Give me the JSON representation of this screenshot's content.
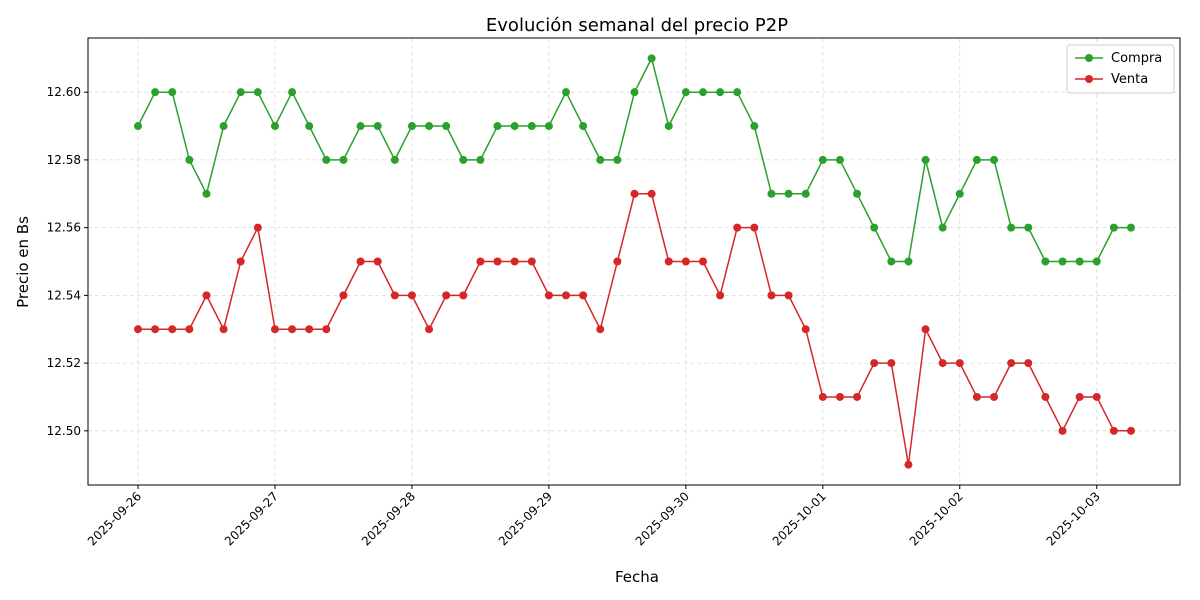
{
  "chart_data": {
    "type": "line",
    "title": "Evolución semanal del precio P2P",
    "x_label": "Fecha",
    "y_label": "Precio en Bs",
    "categories": [
      "2025-09-26",
      null,
      null,
      null,
      null,
      null,
      null,
      null,
      "2025-09-27",
      null,
      null,
      null,
      null,
      null,
      null,
      null,
      "2025-09-28",
      null,
      null,
      null,
      null,
      null,
      null,
      null,
      "2025-09-29",
      null,
      null,
      null,
      null,
      null,
      null,
      null,
      "2025-09-30",
      null,
      null,
      null,
      null,
      null,
      null,
      null,
      "2025-10-01",
      null,
      null,
      null,
      null,
      null,
      null,
      null,
      "2025-10-02",
      null,
      null,
      null,
      null,
      null,
      null,
      null,
      "2025-10-03",
      null,
      null
    ],
    "series": [
      {
        "name": "Compra",
        "color": "#2ca02c",
        "values": [
          12.59,
          12.6,
          12.6,
          12.58,
          12.57,
          12.59,
          12.6,
          12.6,
          12.59,
          12.6,
          12.59,
          12.58,
          12.58,
          12.59,
          12.59,
          12.58,
          12.59,
          12.59,
          12.59,
          12.58,
          12.58,
          12.59,
          12.59,
          12.59,
          12.59,
          12.6,
          12.59,
          12.58,
          12.58,
          12.6,
          12.61,
          12.59,
          12.6,
          12.6,
          12.6,
          12.6,
          12.59,
          12.57,
          12.57,
          12.57,
          12.58,
          12.58,
          12.57,
          12.56,
          12.55,
          12.55,
          12.58,
          12.56,
          12.57,
          12.58,
          12.58,
          12.56,
          12.56,
          12.55,
          12.55,
          12.55,
          12.55,
          12.56,
          12.56
        ]
      },
      {
        "name": "Venta",
        "color": "#d62728",
        "values": [
          12.53,
          12.53,
          12.53,
          12.53,
          12.54,
          12.53,
          12.55,
          12.56,
          12.53,
          12.53,
          12.53,
          12.53,
          12.54,
          12.55,
          12.55,
          12.54,
          12.54,
          12.53,
          12.54,
          12.54,
          12.55,
          12.55,
          12.55,
          12.55,
          12.54,
          12.54,
          12.54,
          12.53,
          12.55,
          12.57,
          12.57,
          12.55,
          12.55,
          12.55,
          12.54,
          12.56,
          12.56,
          12.54,
          12.54,
          12.53,
          12.51,
          12.51,
          12.51,
          12.52,
          12.52,
          12.49,
          12.53,
          12.52,
          12.52,
          12.51,
          12.51,
          12.52,
          12.52,
          12.51,
          12.5,
          12.51,
          12.51,
          12.5,
          12.5
        ]
      }
    ],
    "ylim": [
      12.484,
      12.616
    ],
    "yticks": [
      {
        "value": 12.5,
        "label": "12.50"
      },
      {
        "value": 12.52,
        "label": "12.52"
      },
      {
        "value": 12.54,
        "label": "12.54"
      },
      {
        "value": 12.56,
        "label": "12.56"
      },
      {
        "value": 12.58,
        "label": "12.58"
      },
      {
        "value": 12.6,
        "label": "12.60"
      }
    ],
    "grid": true,
    "legend": "upper right"
  }
}
